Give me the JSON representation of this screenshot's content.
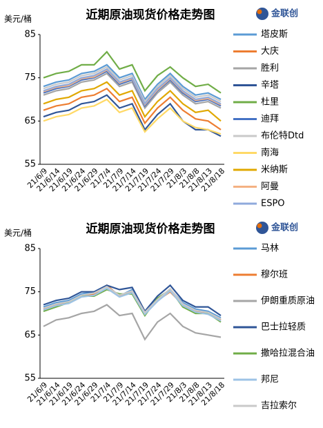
{
  "logo": "金联创",
  "chart_data": [
    {
      "type": "line",
      "title": "近期原油现货价格走势图",
      "y_label": "美元/桶",
      "categories": [
        "21/6/9",
        "21/6/14",
        "21/6/19",
        "21/6/24",
        "21/6/29",
        "21/7/4",
        "21/7/9",
        "21/7/14",
        "21/7/19",
        "21/7/24",
        "21/7/29",
        "21/8/3",
        "21/8/8",
        "21/8/13",
        "21/8/18"
      ],
      "ylim": [
        55,
        85
      ],
      "yticks": [
        55,
        65,
        75,
        85
      ],
      "grid": false,
      "legend": "right",
      "series": [
        {
          "name": "塔皮斯",
          "color": "#5b9bd5",
          "values": [
            73,
            74,
            74.5,
            76,
            76.5,
            78,
            75,
            76,
            70,
            73.5,
            76,
            73,
            71,
            71.5,
            70
          ]
        },
        {
          "name": "大庆",
          "color": "#ed7d31",
          "values": [
            67.5,
            68.5,
            69,
            70.5,
            71,
            72.5,
            69.5,
            70.5,
            64.5,
            68,
            70.5,
            67.5,
            65.5,
            65,
            63
          ]
        },
        {
          "name": "胜利",
          "color": "#a5a5a5",
          "values": [
            71,
            72,
            72.5,
            74,
            74.5,
            76,
            73,
            74,
            68,
            71.5,
            74,
            71,
            69,
            69.5,
            68
          ]
        },
        {
          "name": "辛塔",
          "color": "#2f5597",
          "values": [
            66,
            67,
            67.5,
            69,
            69.5,
            71,
            68,
            69,
            63,
            66.5,
            69,
            65,
            63,
            63,
            61.5
          ]
        },
        {
          "name": "杜里",
          "color": "#70ad47",
          "values": [
            75,
            76,
            76.5,
            78,
            78,
            81,
            77,
            78,
            72,
            75.5,
            77.5,
            75,
            73,
            73.5,
            71.5
          ]
        },
        {
          "name": "迪拜",
          "color": "#4472c4",
          "values": [
            71.5,
            72.5,
            73,
            74.5,
            75,
            76.5,
            73.5,
            74.5,
            68.5,
            72,
            74.5,
            71.5,
            69.5,
            70,
            68.5
          ]
        },
        {
          "name": "布伦特Dtd",
          "color": "#c9c9c9",
          "values": [
            72.5,
            73.5,
            74,
            75.5,
            76,
            77.5,
            74.5,
            75.5,
            69.5,
            73,
            75.5,
            72.5,
            70.5,
            71,
            69.5
          ]
        },
        {
          "name": "南海",
          "color": "#ffd966",
          "values": [
            65,
            66,
            66.5,
            68,
            68.5,
            70,
            67,
            68,
            62.5,
            65.5,
            68,
            65,
            63.5,
            63,
            62
          ]
        },
        {
          "name": "米纳斯",
          "color": "#e0a800",
          "values": [
            69,
            70,
            70.5,
            72,
            72.5,
            74,
            71,
            72,
            66,
            69.5,
            72,
            69,
            67,
            67.5,
            65
          ]
        },
        {
          "name": "阿曼",
          "color": "#f4b183",
          "values": [
            71.8,
            72.8,
            73.2,
            74.8,
            75.2,
            76.8,
            73.8,
            74.8,
            68.8,
            72.2,
            74.8,
            71.8,
            69.8,
            70.2,
            68.8
          ]
        },
        {
          "name": "ESPO",
          "color": "#8faadc",
          "values": [
            72,
            73,
            73.5,
            75,
            75.5,
            77,
            74,
            75,
            69,
            72.5,
            75,
            72,
            70,
            70.5,
            69
          ]
        }
      ]
    },
    {
      "type": "line",
      "title": "近期原油现货价格走势图",
      "y_label": "美元/桶",
      "categories": [
        "21/6/9",
        "21/6/14",
        "21/6/19",
        "21/6/24",
        "21/6/29",
        "21/7/4",
        "21/7/9",
        "21/7/14",
        "21/7/19",
        "21/7/24",
        "21/7/29",
        "21/8/3",
        "21/8/8",
        "21/8/13",
        "21/8/18"
      ],
      "ylim": [
        55,
        85
      ],
      "yticks": [
        55,
        65,
        75,
        85
      ],
      "grid": false,
      "legend": "right",
      "series": [
        {
          "name": "马林",
          "color": "#5b9bd5",
          "values": [
            71.5,
            72.5,
            73,
            74.5,
            75,
            76.5,
            74,
            75.5,
            70,
            73.5,
            75.5,
            72.5,
            71,
            70.5,
            69
          ]
        },
        {
          "name": "穆尔班",
          "color": "#ed7d31",
          "values": [
            71,
            72,
            72.5,
            74,
            74.5,
            76.5,
            74,
            75,
            70,
            73,
            75,
            72,
            70.5,
            70,
            68.5
          ]
        },
        {
          "name": "伊朗重质原油",
          "color": "#a5a5a5",
          "values": [
            67,
            68.5,
            69,
            70,
            70.5,
            72,
            69.5,
            70,
            64,
            68,
            70,
            67,
            65.5,
            65,
            64.5
          ]
        },
        {
          "name": "巴士拉轻质",
          "color": "#2f5597",
          "values": [
            72,
            73,
            73.5,
            75,
            75,
            76.5,
            75.5,
            76,
            70.5,
            74,
            76.5,
            73,
            71.5,
            71.5,
            69.5
          ]
        },
        {
          "name": "撒哈拉混合油",
          "color": "#70ad47",
          "values": [
            70.5,
            71.5,
            72.5,
            74,
            74,
            75.5,
            74.5,
            74.5,
            69.5,
            73.5,
            75.5,
            71.5,
            70,
            70,
            68
          ]
        },
        {
          "name": "邦尼",
          "color": "#9dc3e6",
          "values": [
            70.8,
            71.8,
            72.3,
            73.8,
            74.2,
            75.8,
            73.8,
            74.8,
            69.8,
            72.8,
            75.2,
            71.8,
            70.3,
            69.8,
            68.3
          ]
        },
        {
          "name": "吉拉索尔",
          "color": "#c9c9c9",
          "values": [
            71.2,
            72.2,
            72.7,
            74.2,
            74.7,
            76.2,
            74.2,
            75.2,
            70.2,
            73.2,
            75.7,
            72.2,
            70.7,
            70.2,
            68.7
          ]
        }
      ]
    }
  ]
}
